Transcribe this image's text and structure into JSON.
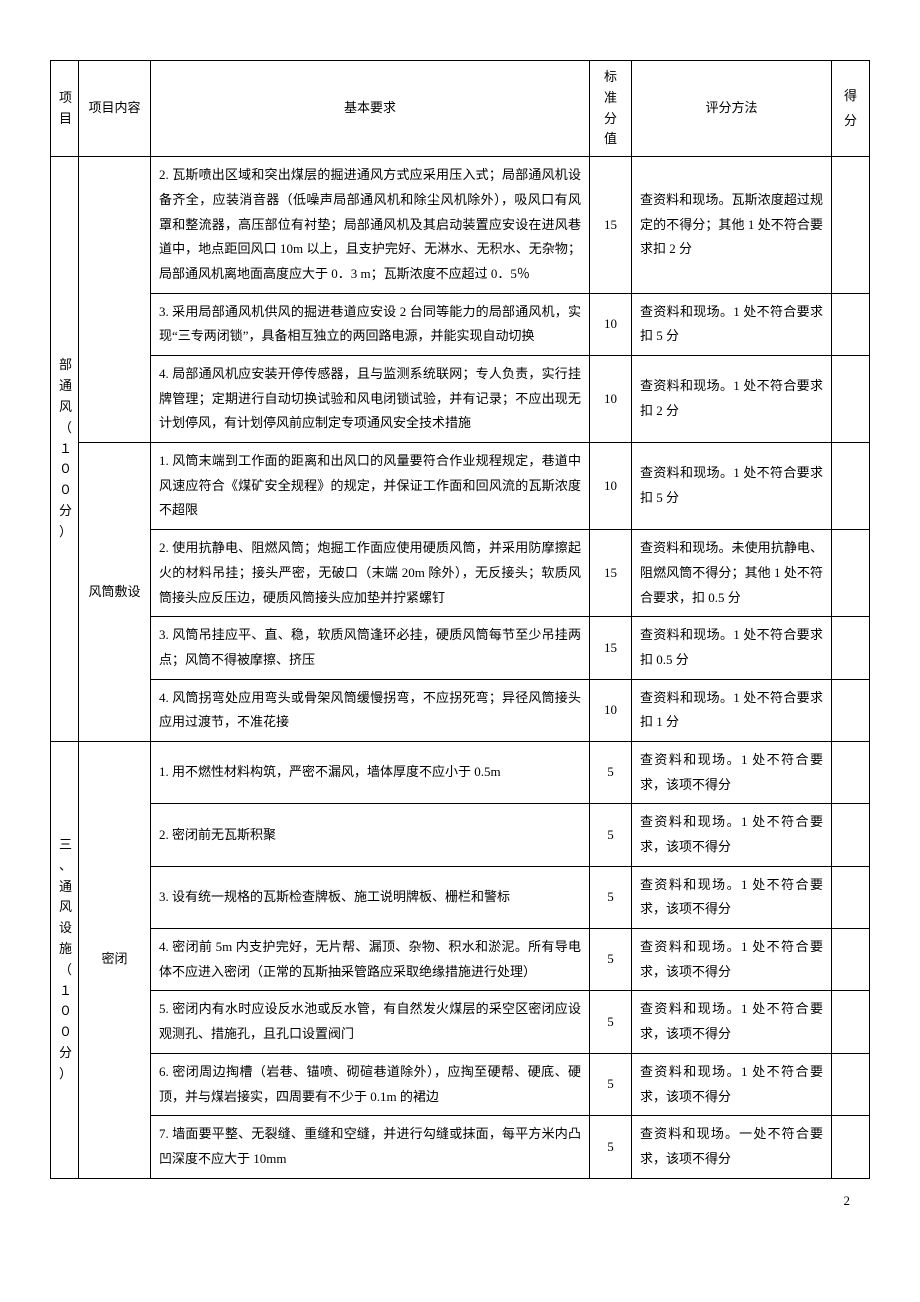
{
  "header": {
    "col1": "项目",
    "col2": "项目内容",
    "col3": "基本要求",
    "col4": "标准分值",
    "col5": "评分方法",
    "col6": "得分"
  },
  "section_a": {
    "title": "部通风（１００分）",
    "rows": [
      {
        "req": "2. 瓦斯喷出区域和突出煤层的掘进通风方式应采用压入式；局部通风机设备齐全，应装消音器（低噪声局部通风机和除尘风机除外），吸风口有风罩和整流器，高压部位有衬垫；局部通风机及其启动装置应安设在进风巷道中，地点距回风口 10m 以上，且支护完好、无淋水、无积水、无杂物；局部通风机离地面高度应大于 0．3 m；瓦斯浓度不应超过 0．5％",
        "score": "15",
        "method": "查资料和现场。瓦斯浓度超过规定的不得分；其他 1 处不符合要求扣 2 分",
        "got": ""
      },
      {
        "req": "3. 采用局部通风机供风的掘进巷道应安设 2 台同等能力的局部通风机，实现“三专两闭锁”，具备相互独立的两回路电源，并能实现自动切换",
        "score": "10",
        "method": "查资料和现场。1 处不符合要求扣 5 分",
        "got": ""
      },
      {
        "req": "4. 局部通风机应安装开停传感器，且与监测系统联网；专人负责，实行挂牌管理；定期进行自动切换试验和风电闭锁试验，并有记录；不应出现无计划停风，有计划停风前应制定专项通风安全技术措施",
        "score": "10",
        "method": "查资料和现场。1 处不符合要求扣 2 分",
        "got": ""
      }
    ],
    "content_b": "风筒敷设",
    "rows_b": [
      {
        "req": "1. 风筒末端到工作面的距离和出风口的风量要符合作业规程规定，巷道中风速应符合《煤矿安全规程》的规定，并保证工作面和回风流的瓦斯浓度不超限",
        "score": "10",
        "method": "查资料和现场。1 处不符合要求扣 5 分",
        "got": ""
      },
      {
        "req": "2. 使用抗静电、阻燃风筒；炮掘工作面应使用硬质风筒，并采用防摩擦起火的材料吊挂；接头严密，无破口（末端 20m 除外），无反接头；软质风筒接头应反压边，硬质风筒接头应加垫并拧紧螺钉",
        "score": "15",
        "method": "查资料和现场。未使用抗静电、阻燃风筒不得分；其他 1 处不符合要求，扣 0.5 分",
        "got": ""
      },
      {
        "req": "3. 风筒吊挂应平、直、稳，软质风筒逢环必挂，硬质风筒每节至少吊挂两点；风筒不得被摩擦、挤压",
        "score": "15",
        "method": "查资料和现场。1 处不符合要求扣 0.5 分",
        "got": ""
      },
      {
        "req": "4. 风筒拐弯处应用弯头或骨架风筒缓慢拐弯，不应拐死弯；异径风筒接头应用过渡节，不准花接",
        "score": "10",
        "method": "查资料和现场。1 处不符合要求扣 1 分",
        "got": ""
      }
    ]
  },
  "section_c": {
    "title": "三、通风设施（１００分）",
    "content": "密闭",
    "rows": [
      {
        "req": "1. 用不燃性材料构筑，严密不漏风，墙体厚度不应小于 0.5m",
        "score": "5",
        "method": "查资料和现场。1 处不符合要求，该项不得分",
        "got": ""
      },
      {
        "req": "2. 密闭前无瓦斯积聚",
        "score": "5",
        "method": "查资料和现场。1 处不符合要求，该项不得分",
        "got": ""
      },
      {
        "req": "3. 设有统一规格的瓦斯检查牌板、施工说明牌板、栅栏和警标",
        "score": "5",
        "method": "查资料和现场。1 处不符合要求，该项不得分",
        "got": ""
      },
      {
        "req": "4. 密闭前 5m 内支护完好，无片帮、漏顶、杂物、积水和淤泥。所有导电体不应进入密闭（正常的瓦斯抽采管路应采取绝缘措施进行处理）",
        "score": "5",
        "method": "查资料和现场。1 处不符合要求，该项不得分",
        "got": ""
      },
      {
        "req": "5. 密闭内有水时应设反水池或反水管，有自然发火煤层的采空区密闭应设观测孔、措施孔，且孔口设置阀门",
        "score": "5",
        "method": "查资料和现场。1 处不符合要求，该项不得分",
        "got": ""
      },
      {
        "req": "6. 密闭周边掏槽（岩巷、锚喷、砌碹巷道除外），应掏至硬帮、硬底、硬顶，并与煤岩接实，四周要有不少于 0.1m 的裙边",
        "score": "5",
        "method": "查资料和现场。1 处不符合要求，该项不得分",
        "got": ""
      },
      {
        "req": "7. 墙面要平整、无裂缝、重缝和空缝，并进行勾缝或抹面，每平方米内凸凹深度不应大于 10mm",
        "score": "5",
        "method": "查资料和现场。一处不符合要求，该项不得分",
        "got": ""
      }
    ]
  },
  "page": "2"
}
